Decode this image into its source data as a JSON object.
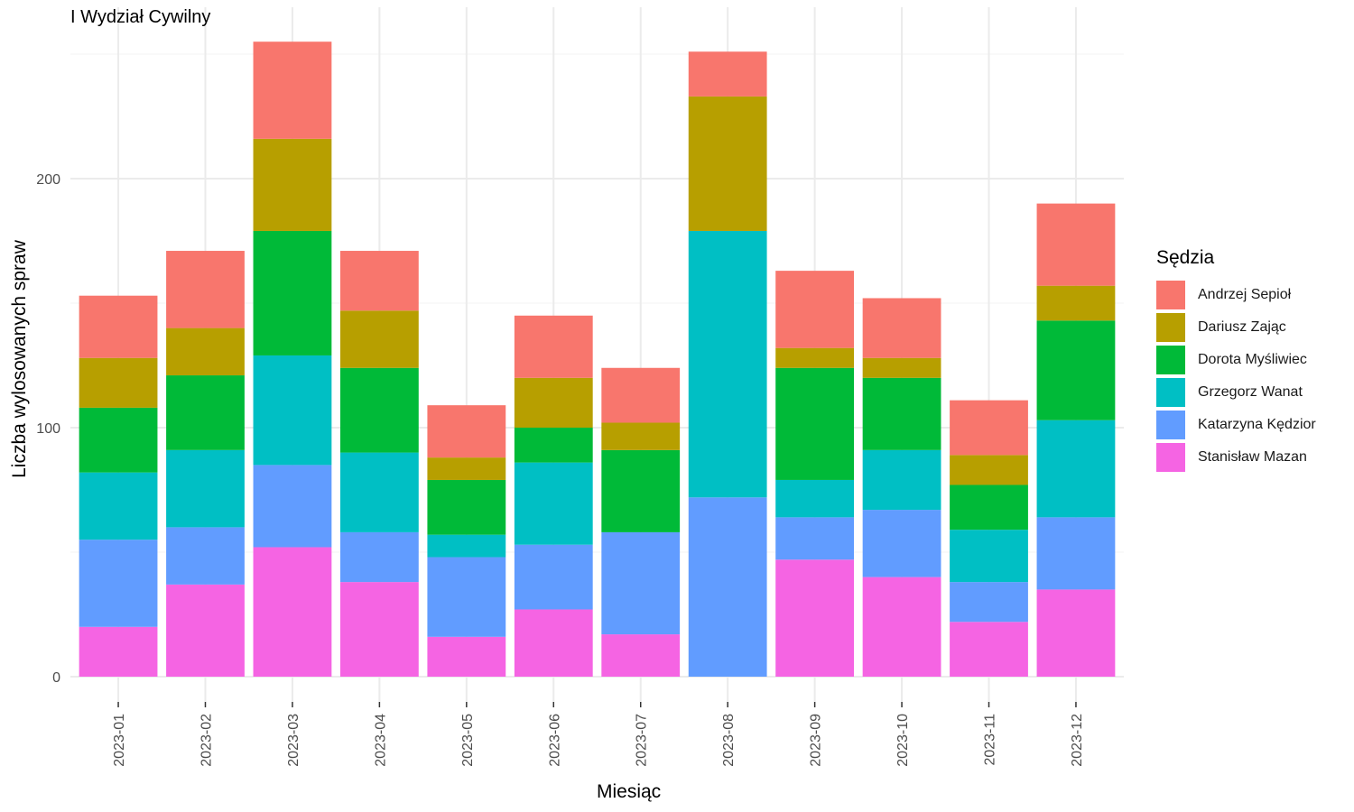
{
  "chart_data": {
    "type": "bar",
    "stacked": true,
    "title": "I Wydział Cywilny",
    "xlabel": "Miesiąc",
    "ylabel": "Liczba wylosowanych spraw",
    "ylim": [
      0,
      265
    ],
    "yticks": [
      0,
      100,
      200
    ],
    "grid": true,
    "legend_title": "Sędzia",
    "legend_position": "right",
    "categories": [
      "2023-01",
      "2023-02",
      "2023-03",
      "2023-04",
      "2023-05",
      "2023-06",
      "2023-07",
      "2023-08",
      "2023-09",
      "2023-10",
      "2023-11",
      "2023-12"
    ],
    "series": [
      {
        "name": "Stanisław Mazan",
        "color": "#F564E3",
        "values": [
          20,
          37,
          52,
          38,
          16,
          27,
          17,
          0,
          47,
          40,
          22,
          35
        ]
      },
      {
        "name": "Katarzyna Kędzior",
        "color": "#619CFF",
        "values": [
          35,
          23,
          33,
          20,
          32,
          26,
          41,
          72,
          17,
          27,
          16,
          29
        ]
      },
      {
        "name": "Grzegorz Wanat",
        "color": "#00BFC4",
        "values": [
          27,
          31,
          44,
          32,
          9,
          33,
          0,
          107,
          15,
          24,
          21,
          39
        ]
      },
      {
        "name": "Dorota Myśliwiec",
        "color": "#00BA38",
        "values": [
          26,
          30,
          50,
          34,
          22,
          14,
          33,
          0,
          45,
          29,
          18,
          40
        ]
      },
      {
        "name": "Dariusz Zając",
        "color": "#B79F00",
        "values": [
          20,
          19,
          37,
          23,
          9,
          20,
          11,
          54,
          8,
          8,
          12,
          14
        ]
      },
      {
        "name": "Andrzej Sepioł",
        "color": "#F8766D",
        "values": [
          25,
          31,
          39,
          24,
          21,
          25,
          22,
          18,
          31,
          24,
          22,
          33
        ]
      }
    ],
    "legend_order": [
      "Andrzej Sepioł",
      "Dariusz Zając",
      "Dorota Myśliwiec",
      "Grzegorz Wanat",
      "Katarzyna Kędzior",
      "Stanisław Mazan"
    ]
  }
}
